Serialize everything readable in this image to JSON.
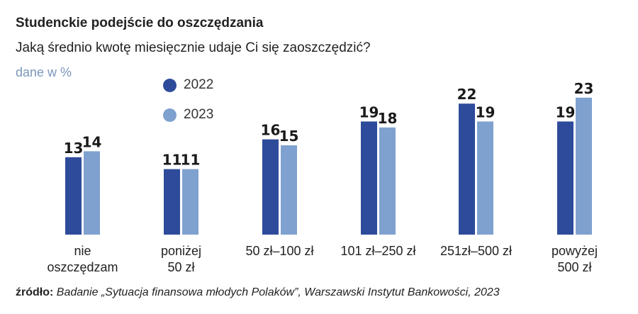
{
  "title": "Studenckie podejście do oszczędzania",
  "subtitle": "Jaką średnio kwotę miesięcznie udaje Ci się zaoszczędzić?",
  "unit": "dane w %",
  "source": {
    "label": "źródło:",
    "text": "Badanie „Sytuacja finansowa młodych Polaków”, Warszawski Instytut Bankowości, 2023"
  },
  "colors": {
    "s2022": "#2e4b9b",
    "s2023": "#7fa1cf"
  },
  "chart_data": {
    "type": "bar",
    "categories": [
      [
        "nie",
        "oszczędzam"
      ],
      [
        "poniżej",
        "50 zł"
      ],
      [
        "50 zł–100 zł"
      ],
      [
        "101 zł–250 zł"
      ],
      [
        "251zł–500 zł"
      ],
      [
        "powyżej",
        "500 zł"
      ]
    ],
    "series": [
      {
        "name": "2022",
        "values": [
          13,
          11,
          16,
          19,
          22,
          19
        ]
      },
      {
        "name": "2023",
        "values": [
          14,
          11,
          15,
          18,
          19,
          23
        ]
      }
    ],
    "title": "Studenckie podejście do oszczędzania",
    "ylabel": "dane w %",
    "ylim": [
      0,
      23
    ],
    "grid": false,
    "legend": "top-left"
  }
}
